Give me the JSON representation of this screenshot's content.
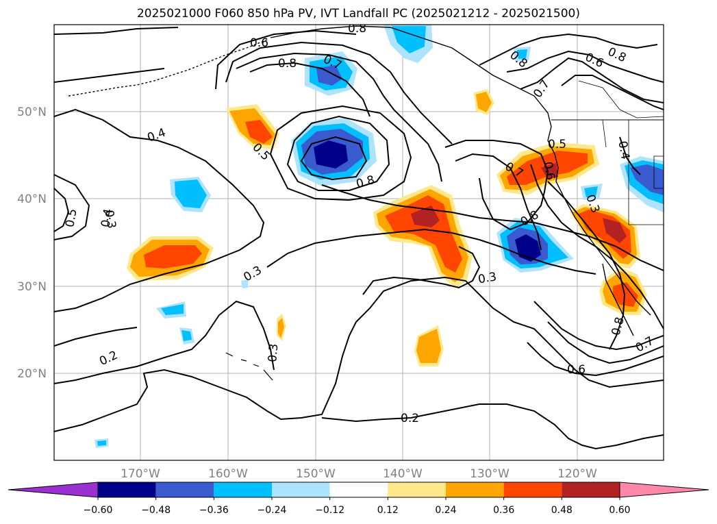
{
  "title": "2025021000 F060 850 hPa PV, IVT Landfall PC (2025021212 - 2025021500)",
  "map": {
    "lat_labels": [
      "50°N",
      "40°N",
      "30°N",
      "20°N"
    ],
    "lon_labels": [
      "170°W",
      "160°W",
      "150°W",
      "140°W",
      "130°W",
      "120°W"
    ],
    "contour_labels": [
      "0.8",
      "0.6",
      "0.7",
      "0.8",
      "0.4",
      "0.5",
      "0.8",
      "0.5",
      "0.4",
      "0.3",
      "0.5",
      "0.7",
      "0.6",
      "0.8",
      "0.3",
      "0.3",
      "0.3",
      "0.2",
      "0.3",
      "0.2",
      "0.6",
      "0.8",
      "0.7",
      "0.6",
      "0.8",
      "0.7",
      "0.8",
      "0.4"
    ],
    "colors": {
      "neg_060": "#00008b",
      "neg_048": "#3a5bd0",
      "neg_036": "#00bfff",
      "neg_024": "#aee3ff",
      "pos_024": "#ffe88a",
      "pos_036": "#ffa500",
      "pos_048": "#ff4500",
      "pos_060": "#b22222"
    }
  },
  "colorbar": {
    "ticks": [
      "−0.60",
      "−0.48",
      "−0.36",
      "−0.24",
      "−0.12",
      "0.12",
      "0.24",
      "0.36",
      "0.48",
      "0.60"
    ],
    "colors": [
      "#9b30d0",
      "#00008b",
      "#3a5bd0",
      "#00bfff",
      "#aee3ff",
      "#ffffff",
      "#ffe88a",
      "#ffa500",
      "#ff4500",
      "#b22222",
      "#ff88aa"
    ]
  }
}
